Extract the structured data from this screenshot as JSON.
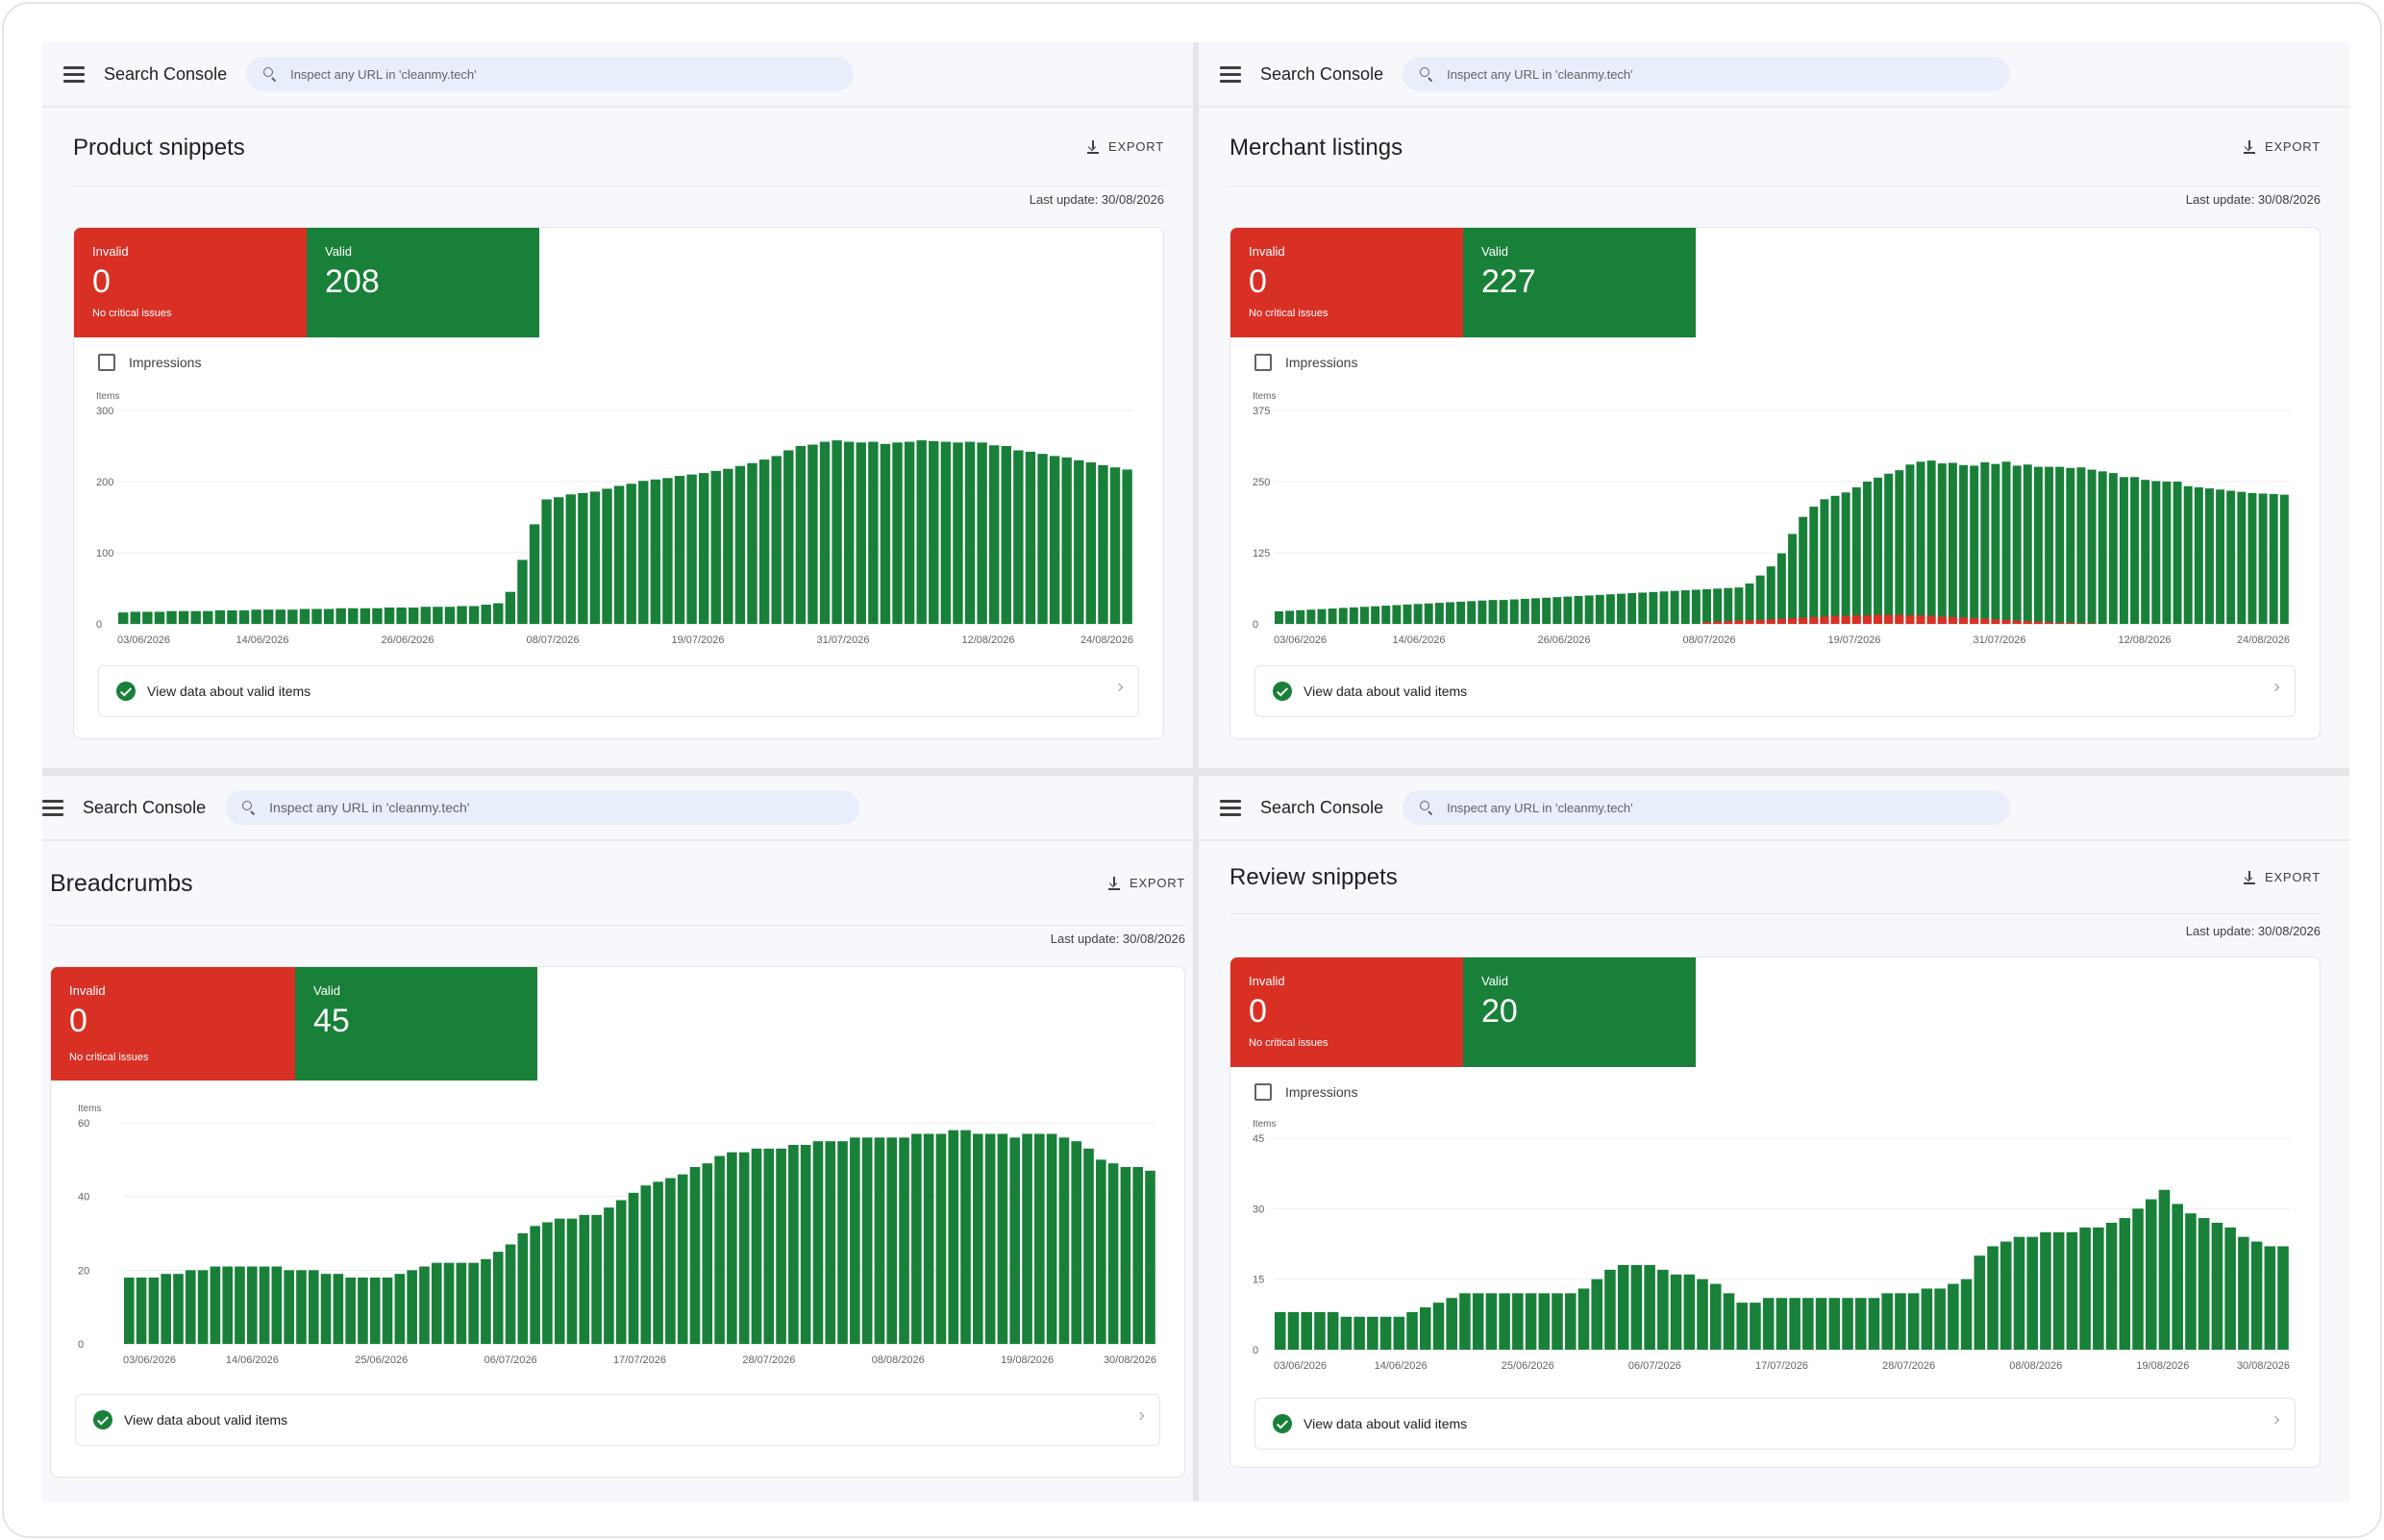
{
  "panels": [
    {
      "app_name": "Search Console",
      "search_placeholder": "Inspect any URL in 'cleanmy.tech'",
      "title": "Product snippets",
      "export_label": "EXPORT",
      "last_update": "Last update: 30/08/2026",
      "invalid": {
        "label": "Invalid",
        "value": "0",
        "note": "No critical issues"
      },
      "valid": {
        "label": "Valid",
        "value": "208"
      },
      "impressions_label": "Impressions",
      "view_label": "View data about valid items",
      "chart_data": {
        "type": "bar",
        "stacked": true,
        "ylabel": "Items",
        "ylim": [
          0,
          300
        ],
        "yticks": [
          "0",
          "100",
          "200",
          "300"
        ],
        "xticks": [
          "03/06/2026",
          "14/06/2026",
          "26/06/2026",
          "08/07/2026",
          "19/07/2026",
          "31/07/2026",
          "12/08/2026",
          "24/08/2026"
        ],
        "colors": {
          "valid": "#188038",
          "invalid": "#d93025"
        },
        "series": [
          {
            "name": "Valid",
            "values": [
              16,
              17,
              17,
              17,
              18,
              18,
              18,
              18,
              19,
              19,
              19,
              20,
              20,
              20,
              20,
              21,
              21,
              21,
              22,
              22,
              22,
              22,
              23,
              23,
              23,
              24,
              24,
              24,
              25,
              25,
              27,
              29,
              45,
              90,
              140,
              175,
              178,
              182,
              184,
              186,
              190,
              194,
              197,
              201,
              203,
              205,
              208,
              210,
              212,
              215,
              218,
              222,
              226,
              231,
              236,
              244,
              250,
              252,
              256,
              258,
              256,
              255,
              256,
              253,
              255,
              256,
              258,
              257,
              256,
              255,
              256,
              255,
              251,
              250,
              244,
              242,
              239,
              236,
              234,
              230,
              227,
              223,
              220,
              217
            ]
          }
        ]
      }
    },
    {
      "app_name": "Search Console",
      "search_placeholder": "Inspect any URL in 'cleanmy.tech'",
      "title": "Merchant listings",
      "export_label": "EXPORT",
      "last_update": "Last update: 30/08/2026",
      "invalid": {
        "label": "Invalid",
        "value": "0",
        "note": "No critical issues"
      },
      "valid": {
        "label": "Valid",
        "value": "227"
      },
      "impressions_label": "Impressions",
      "view_label": "View data about valid items",
      "chart_data": {
        "type": "bar",
        "stacked": true,
        "ylabel": "Items",
        "ylim": [
          0,
          375
        ],
        "yticks": [
          "0",
          "125",
          "250",
          "375"
        ],
        "xticks": [
          "03/06/2026",
          "14/06/2026",
          "26/06/2026",
          "08/07/2026",
          "19/07/2026",
          "31/07/2026",
          "12/08/2026",
          "24/08/2026"
        ],
        "colors": {
          "valid": "#188038",
          "invalid": "#d93025"
        },
        "series": [
          {
            "name": "Valid",
            "values": [
              22,
              23,
              24,
              25,
              26,
              27,
              28,
              29,
              30,
              31,
              32,
              33,
              34,
              35,
              36,
              37,
              38,
              39,
              40,
              41,
              42,
              42,
              43,
              44,
              45,
              46,
              47,
              48,
              49,
              50,
              51,
              52,
              53,
              54,
              55,
              56,
              57,
              58,
              59,
              60,
              61,
              62,
              63,
              64,
              71,
              85,
              101,
              124,
              158,
              188,
              206,
              219,
              225,
              231,
              240,
              250,
              257,
              264,
              270,
              280,
              285,
              287,
              282,
              283,
              279,
              278,
              284,
              281,
              285,
              278,
              280,
              276,
              276,
              276,
              274,
              275,
              271,
              268,
              265,
              258,
              258,
              253,
              251,
              250,
              250,
              242,
              240,
              238,
              236,
              234,
              232,
              230,
              229,
              228,
              227
            ]
          },
          {
            "name": "Invalid",
            "values": [
              0,
              0,
              0,
              0,
              0,
              0,
              0,
              0,
              0,
              0,
              0,
              0,
              0,
              0,
              0,
              0,
              0,
              0,
              0,
              0,
              0,
              0,
              0,
              0,
              0,
              0,
              0,
              0,
              0,
              0,
              0,
              0,
              0,
              0,
              0,
              0,
              0,
              0,
              0,
              0,
              3,
              4,
              5,
              6,
              6,
              7,
              8,
              9,
              10,
              11,
              12,
              13,
              14,
              14,
              15,
              15,
              16,
              16,
              16,
              15,
              15,
              14,
              13,
              12,
              11,
              10,
              9,
              8,
              7,
              6,
              5,
              4,
              3,
              2,
              2,
              1,
              1,
              0,
              0,
              0,
              0,
              0,
              0,
              0,
              0,
              0,
              0,
              0,
              0,
              0,
              0,
              0,
              0,
              0,
              0
            ]
          }
        ]
      }
    },
    {
      "app_name": "Search Console",
      "search_placeholder": "Inspect any URL in 'cleanmy.tech'",
      "title": "Breadcrumbs",
      "export_label": "EXPORT",
      "last_update": "Last update: 30/08/2026",
      "invalid": {
        "label": "Invalid",
        "value": "0",
        "note": "No critical issues"
      },
      "valid": {
        "label": "Valid",
        "value": "45"
      },
      "impressions_label": "",
      "view_label": "View data about valid items",
      "chart_data": {
        "type": "bar",
        "stacked": true,
        "ylabel": "Items",
        "ylim": [
          0,
          60
        ],
        "yticks": [
          "0",
          "20",
          "40",
          "60"
        ],
        "xticks": [
          "03/06/2026",
          "14/06/2026",
          "25/06/2026",
          "06/07/2026",
          "17/07/2026",
          "28/07/2026",
          "08/08/2026",
          "19/08/2026",
          "30/08/2026"
        ],
        "colors": {
          "valid": "#188038",
          "invalid": "#d93025"
        },
        "series": [
          {
            "name": "Valid",
            "values": [
              18,
              18,
              18,
              19,
              19,
              20,
              20,
              21,
              21,
              21,
              21,
              21,
              21,
              20,
              20,
              20,
              19,
              19,
              18,
              18,
              18,
              18,
              19,
              20,
              21,
              22,
              22,
              22,
              22,
              23,
              25,
              27,
              30,
              32,
              33,
              34,
              34,
              35,
              35,
              37,
              39,
              41,
              43,
              44,
              45,
              46,
              48,
              49,
              51,
              52,
              52,
              53,
              53,
              53,
              54,
              54,
              55,
              55,
              55,
              56,
              56,
              56,
              56,
              56,
              57,
              57,
              57,
              58,
              58,
              57,
              57,
              57,
              56,
              57,
              57,
              57,
              56,
              55,
              53,
              50,
              49,
              48,
              48,
              47
            ]
          }
        ]
      }
    },
    {
      "app_name": "Search Console",
      "search_placeholder": "Inspect any URL in 'cleanmy.tech'",
      "title": "Review snippets",
      "export_label": "EXPORT",
      "last_update": "Last update: 30/08/2026",
      "invalid": {
        "label": "Invalid",
        "value": "0",
        "note": "No critical issues"
      },
      "valid": {
        "label": "Valid",
        "value": "20"
      },
      "impressions_label": "Impressions",
      "view_label": "View data about valid items",
      "chart_data": {
        "type": "bar",
        "stacked": true,
        "ylabel": "Items",
        "ylim": [
          0,
          45
        ],
        "yticks": [
          "0",
          "15",
          "30",
          "45"
        ],
        "xticks": [
          "03/06/2026",
          "14/06/2026",
          "25/06/2026",
          "06/07/2026",
          "17/07/2026",
          "28/07/2026",
          "08/08/2026",
          "19/08/2026",
          "30/08/2026"
        ],
        "colors": {
          "valid": "#188038",
          "invalid": "#d93025"
        },
        "series": [
          {
            "name": "Valid",
            "values": [
              8,
              8,
              8,
              8,
              8,
              7,
              7,
              7,
              7,
              7,
              8,
              9,
              10,
              11,
              12,
              12,
              12,
              12,
              12,
              12,
              12,
              12,
              12,
              13,
              15,
              17,
              18,
              18,
              18,
              17,
              16,
              16,
              15,
              14,
              12,
              10,
              10,
              11,
              11,
              11,
              11,
              11,
              11,
              11,
              11,
              11,
              12,
              12,
              12,
              13,
              13,
              14,
              15,
              20,
              22,
              23,
              24,
              24,
              25,
              25,
              25,
              26,
              26,
              27,
              28,
              30,
              32,
              34,
              31,
              29,
              28,
              27,
              26,
              24,
              23,
              22,
              22
            ]
          }
        ]
      }
    }
  ]
}
